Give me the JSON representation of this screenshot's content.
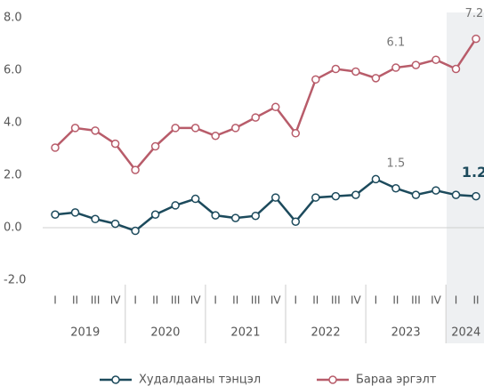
{
  "chart_data": {
    "type": "line",
    "categories": [
      "I",
      "II",
      "III",
      "IV",
      "I",
      "II",
      "III",
      "IV",
      "I",
      "II",
      "III",
      "IV",
      "I",
      "II",
      "III",
      "IV",
      "I",
      "II",
      "III",
      "IV",
      "I",
      "II"
    ],
    "year_groups": [
      "2019",
      "2020",
      "2021",
      "2022",
      "2023",
      "2024"
    ],
    "series": [
      {
        "name": "Худалдааны тэнцэл",
        "color": "#1c4a5c",
        "values": [
          0.5,
          0.58,
          0.33,
          0.15,
          -0.12,
          0.5,
          0.85,
          1.1,
          0.47,
          0.37,
          0.45,
          1.15,
          0.23,
          1.15,
          1.2,
          1.25,
          1.85,
          1.5,
          1.25,
          1.42,
          1.25,
          1.2
        ],
        "value_labels": [
          null,
          null,
          null,
          null,
          null,
          null,
          null,
          null,
          null,
          null,
          null,
          null,
          null,
          null,
          null,
          null,
          null,
          "1.5",
          null,
          null,
          null,
          "1.2"
        ]
      },
      {
        "name": "Бараа эргэлт",
        "color": "#b85c6a",
        "values": [
          3.05,
          3.8,
          3.7,
          3.2,
          2.2,
          3.1,
          3.8,
          3.8,
          3.5,
          3.8,
          4.2,
          4.6,
          3.6,
          5.65,
          6.05,
          5.95,
          5.7,
          6.1,
          6.2,
          6.4,
          6.05,
          7.2
        ],
        "value_labels": [
          null,
          null,
          null,
          null,
          null,
          null,
          null,
          null,
          null,
          null,
          null,
          null,
          null,
          null,
          null,
          null,
          null,
          "6.1",
          null,
          null,
          null,
          "7.2"
        ]
      }
    ],
    "ylim": [
      -2,
      8
    ],
    "yticks": [
      {
        "value": -2,
        "label": "-2.0"
      },
      {
        "value": 0,
        "label": "0.0"
      },
      {
        "value": 2,
        "label": "2.0"
      },
      {
        "value": 4,
        "label": "4.0"
      },
      {
        "value": 6,
        "label": "6.0"
      },
      {
        "value": 8,
        "label": "8.0"
      }
    ],
    "grid": false
  }
}
